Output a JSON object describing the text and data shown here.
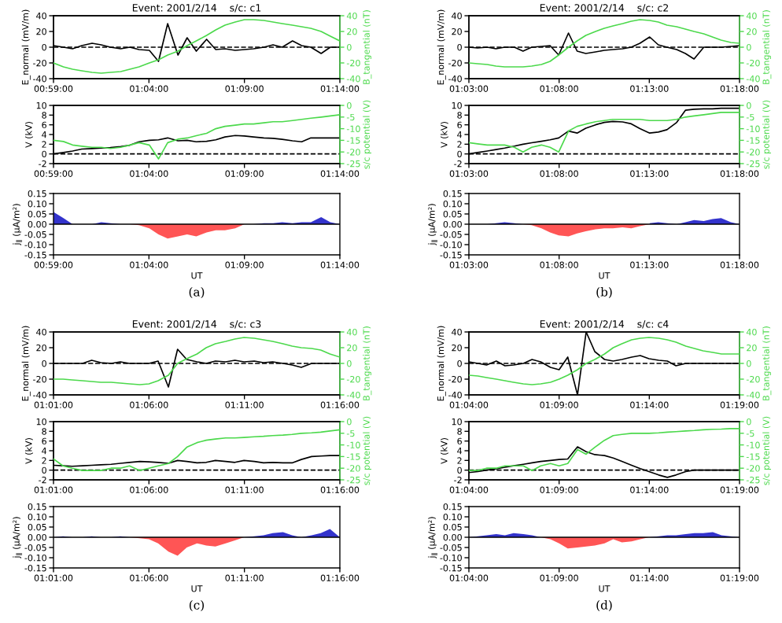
{
  "chart_data": [
    {
      "type": "line",
      "title": "Event: 2001/2/14    s/c: c1",
      "ylabel": "E_normal (mV/m)",
      "y2label": "B_tangential (nT)",
      "x": [
        0.983333,
        0.992,
        1.0,
        1.008,
        1.017,
        1.025,
        1.033,
        1.042,
        1.05,
        1.058,
        1.067,
        1.075,
        1.083,
        1.092,
        1.1,
        1.108,
        1.117,
        1.125,
        1.133,
        1.142,
        1.15,
        1.158,
        1.167,
        1.175,
        1.183,
        1.192,
        1.2,
        1.208,
        1.217,
        1.225,
        1.233333
      ],
      "xlim": [
        0.983333,
        1.233333
      ],
      "xticks": [
        {
          "value": 0.983333,
          "label": "00:59:00"
        },
        {
          "value": 1.066667,
          "label": "01:04:00"
        },
        {
          "value": 1.15,
          "label": "01:09:00"
        },
        {
          "value": 1.233333,
          "label": "01:14:00"
        }
      ],
      "ylim": [
        -40,
        40
      ],
      "yticks": [
        -40,
        -20,
        0,
        20,
        40
      ],
      "y2lim": [
        -40,
        40
      ],
      "y2ticks": [
        -40,
        -20,
        0,
        20,
        40
      ],
      "ref_lines": [
        {
          "axis": "y",
          "value": 0,
          "color": "#000000",
          "line_style": "dashed"
        }
      ],
      "series": [
        {
          "color": "#000000",
          "values": [
            2,
            0,
            -2,
            2,
            5,
            3,
            0,
            -2,
            0,
            -3,
            -4,
            -18,
            30,
            -10,
            12,
            -5,
            10,
            -3,
            -2,
            -4,
            -3,
            -2,
            0,
            3,
            0,
            8,
            2,
            0,
            -8,
            0,
            0
          ]
        },
        {
          "color": "#4cd94c",
          "axis": "y2",
          "values": [
            -20,
            -25,
            -28,
            -30,
            -32,
            -33,
            -32,
            -31,
            -28,
            -25,
            -20,
            -16,
            -10,
            -5,
            2,
            8,
            15,
            22,
            28,
            32,
            35,
            35,
            34,
            32,
            30,
            28,
            26,
            24,
            20,
            14,
            8
          ]
        }
      ]
    },
    {
      "type": "line",
      "ylabel": "V (kV)",
      "y2label": "s/c potential (V)",
      "x": [
        0.983333,
        0.992,
        1.0,
        1.008,
        1.017,
        1.025,
        1.033,
        1.042,
        1.05,
        1.058,
        1.067,
        1.075,
        1.083,
        1.092,
        1.1,
        1.108,
        1.117,
        1.125,
        1.133,
        1.142,
        1.15,
        1.158,
        1.167,
        1.175,
        1.183,
        1.192,
        1.2,
        1.208,
        1.217,
        1.225,
        1.233333
      ],
      "xlim": [
        0.983333,
        1.233333
      ],
      "xticks": [
        {
          "value": 0.983333,
          "label": "00:59:00"
        },
        {
          "value": 1.066667,
          "label": "01:04:00"
        },
        {
          "value": 1.15,
          "label": "01:09:00"
        },
        {
          "value": 1.233333,
          "label": "01:14:00"
        }
      ],
      "ylim": [
        -2,
        10
      ],
      "yticks": [
        -2,
        0,
        2,
        4,
        6,
        8,
        10
      ],
      "y2lim": [
        -25,
        0
      ],
      "y2ticks": [
        -25,
        -20,
        -15,
        -10,
        -5,
        0
      ],
      "ref_lines": [
        {
          "axis": "y",
          "value": 0,
          "color": "#000000",
          "line_style": "dashed"
        }
      ],
      "series": [
        {
          "color": "#000000",
          "values": [
            0,
            0.3,
            0.6,
            1,
            1.1,
            1.2,
            1.3,
            1.5,
            1.8,
            2.5,
            2.8,
            2.9,
            3.3,
            2.7,
            2.8,
            2.5,
            2.6,
            2.9,
            3.5,
            3.8,
            3.7,
            3.5,
            3.3,
            3.2,
            3.0,
            2.7,
            2.5,
            3.3,
            3.3,
            3.3,
            3.3
          ]
        },
        {
          "color": "#4cd94c",
          "axis": "y2",
          "values": [
            -15,
            -15.5,
            -17,
            -17.5,
            -18,
            -18,
            -18.5,
            -18,
            -17,
            -16,
            -17,
            -23,
            -16,
            -14.5,
            -14,
            -13,
            -12,
            -10,
            -9,
            -8.5,
            -8,
            -8,
            -7.5,
            -7,
            -7,
            -6.5,
            -6,
            -5.5,
            -5,
            -4.5,
            -4
          ]
        }
      ]
    },
    {
      "type": "area",
      "xlabel": "UT",
      "ylabel": "j$_{∥}$ (μA/m²)",
      "annotations": [
        "(a)"
      ],
      "x": [
        0.983333,
        0.992,
        1.0,
        1.008,
        1.017,
        1.025,
        1.033,
        1.042,
        1.05,
        1.058,
        1.067,
        1.075,
        1.083,
        1.092,
        1.1,
        1.108,
        1.117,
        1.125,
        1.133,
        1.142,
        1.15,
        1.158,
        1.167,
        1.175,
        1.183,
        1.192,
        1.2,
        1.208,
        1.217,
        1.225,
        1.233333
      ],
      "xlim": [
        0.983333,
        1.233333
      ],
      "xticks": [
        {
          "value": 0.983333,
          "label": "00:59:00"
        },
        {
          "value": 1.066667,
          "label": "01:04:00"
        },
        {
          "value": 1.15,
          "label": "01:09:00"
        },
        {
          "value": 1.233333,
          "label": "01:14:00"
        }
      ],
      "ylim": [
        -0.15,
        0.15
      ],
      "yticks": [
        -0.15,
        {
          "value": -0.1,
          "label": "-0.10"
        },
        -0.05,
        {
          "value": 0,
          "label": "0.00"
        },
        0.05,
        {
          "value": 0.1,
          "label": "0.10"
        },
        0.15
      ],
      "ref_lines": [
        {
          "axis": "y",
          "value": 0,
          "color": "#000000",
          "line_style": "solid"
        }
      ],
      "series": [
        {
          "color": "#3333cc",
          "values": [
            0.06,
            0.03,
            0,
            0,
            0,
            0.01,
            0.005,
            0,
            0,
            null,
            null,
            null,
            null,
            null,
            null,
            null,
            null,
            null,
            null,
            null,
            0,
            0,
            0.005,
            0.005,
            0.01,
            0.005,
            0.01,
            0.01,
            0.035,
            0.01,
            0
          ]
        },
        {
          "color": "#ff5555",
          "values": [
            null,
            null,
            null,
            null,
            null,
            null,
            null,
            0,
            0,
            -0.005,
            -0.02,
            -0.05,
            -0.07,
            -0.06,
            -0.05,
            -0.06,
            -0.04,
            -0.03,
            -0.03,
            -0.02,
            0,
            0,
            null,
            null,
            null,
            null,
            null,
            null,
            null,
            null,
            null
          ]
        }
      ]
    },
    {
      "type": "line",
      "title": "Event: 2001/2/14    s/c: c2",
      "ylabel": "E_normal (mV/m)",
      "y2label": "B_tangential (nT)",
      "x": [
        1.05,
        1.058,
        1.067,
        1.075,
        1.083,
        1.092,
        1.1,
        1.108,
        1.117,
        1.125,
        1.133,
        1.142,
        1.15,
        1.158,
        1.167,
        1.175,
        1.183,
        1.192,
        1.2,
        1.208,
        1.217,
        1.225,
        1.233,
        1.242,
        1.25,
        1.258,
        1.267,
        1.275,
        1.283,
        1.292,
        1.3
      ],
      "xlim": [
        1.05,
        1.3
      ],
      "xticks": [
        {
          "value": 1.05,
          "label": "01:03:00"
        },
        {
          "value": 1.133333,
          "label": "01:08:00"
        },
        {
          "value": 1.216667,
          "label": "01:13:00"
        },
        {
          "value": 1.3,
          "label": "01:18:00"
        }
      ],
      "ylim": [
        -40,
        40
      ],
      "yticks": [
        -40,
        -20,
        0,
        20,
        40
      ],
      "y2lim": [
        -40,
        40
      ],
      "y2ticks": [
        -40,
        -20,
        0,
        20,
        40
      ],
      "ref_lines": [
        {
          "axis": "y",
          "value": 0,
          "color": "#000000",
          "line_style": "dashed"
        }
      ],
      "series": [
        {
          "color": "#000000",
          "values": [
            0,
            -1,
            0,
            -2,
            0,
            0,
            -5,
            0,
            1,
            2,
            -10,
            18,
            -5,
            -8,
            -6,
            -4,
            -3,
            -2,
            0,
            5,
            13,
            3,
            0,
            -3,
            -8,
            -15,
            0,
            0,
            0,
            1,
            2
          ]
        },
        {
          "color": "#4cd94c",
          "axis": "y2",
          "values": [
            -20,
            -21,
            -22,
            -24,
            -25,
            -25,
            -25,
            -24,
            -22,
            -18,
            -10,
            0,
            8,
            15,
            20,
            24,
            27,
            30,
            33,
            35,
            34,
            32,
            28,
            26,
            23,
            20,
            17,
            13,
            9,
            6,
            5
          ]
        }
      ]
    },
    {
      "type": "line",
      "ylabel": "V (kV)",
      "y2label": "s/c potential (V)",
      "x": [
        1.05,
        1.058,
        1.067,
        1.075,
        1.083,
        1.092,
        1.1,
        1.108,
        1.117,
        1.125,
        1.133,
        1.142,
        1.15,
        1.158,
        1.167,
        1.175,
        1.183,
        1.192,
        1.2,
        1.208,
        1.217,
        1.225,
        1.233,
        1.242,
        1.25,
        1.258,
        1.267,
        1.275,
        1.283,
        1.292,
        1.3
      ],
      "xlim": [
        1.05,
        1.3
      ],
      "xticks": [
        {
          "value": 1.05,
          "label": "01:03:00"
        },
        {
          "value": 1.133333,
          "label": "01:08:00"
        },
        {
          "value": 1.216667,
          "label": "01:13:00"
        },
        {
          "value": 1.3,
          "label": "01:18:00"
        }
      ],
      "ylim": [
        -2,
        10
      ],
      "yticks": [
        -2,
        0,
        2,
        4,
        6,
        8,
        10
      ],
      "y2lim": [
        -25,
        0
      ],
      "y2ticks": [
        -25,
        -20,
        -15,
        -10,
        -5,
        0
      ],
      "ref_lines": [
        {
          "axis": "y",
          "value": 0,
          "color": "#000000",
          "line_style": "dashed"
        }
      ],
      "series": [
        {
          "color": "#000000",
          "values": [
            0,
            0.3,
            0.6,
            0.9,
            1.2,
            1.6,
            2.0,
            2.3,
            2.6,
            2.9,
            3.3,
            4.7,
            4.3,
            5.3,
            6.0,
            6.5,
            6.7,
            6.6,
            6.2,
            5.2,
            4.3,
            4.5,
            5.0,
            6.5,
            9.0,
            9.2,
            9.3,
            9.3,
            9.4,
            9.4,
            9.4
          ]
        },
        {
          "color": "#4cd94c",
          "axis": "y2",
          "values": [
            -16,
            -16.5,
            -17,
            -17,
            -17,
            -18,
            -20,
            -18,
            -17,
            -18,
            -20,
            -11,
            -9,
            -8,
            -7,
            -6.5,
            -6,
            -6,
            -6,
            -6,
            -6.5,
            -6.5,
            -6.5,
            -6,
            -5,
            -4.5,
            -4,
            -3.5,
            -3,
            -3,
            -3
          ]
        }
      ]
    },
    {
      "type": "area",
      "xlabel": "UT",
      "ylabel": "j$_{∥}$ (μA/m²)",
      "annotations": [
        "(b)"
      ],
      "x": [
        1.05,
        1.058,
        1.067,
        1.075,
        1.083,
        1.092,
        1.1,
        1.108,
        1.117,
        1.125,
        1.133,
        1.142,
        1.15,
        1.158,
        1.167,
        1.175,
        1.183,
        1.192,
        1.2,
        1.208,
        1.217,
        1.225,
        1.233,
        1.242,
        1.25,
        1.258,
        1.267,
        1.275,
        1.283,
        1.292,
        1.3
      ],
      "xlim": [
        1.05,
        1.3
      ],
      "xticks": [
        {
          "value": 1.05,
          "label": "01:03:00"
        },
        {
          "value": 1.133333,
          "label": "01:08:00"
        },
        {
          "value": 1.216667,
          "label": "01:13:00"
        },
        {
          "value": 1.3,
          "label": "01:18:00"
        }
      ],
      "ylim": [
        -0.15,
        0.15
      ],
      "yticks": [
        -0.15,
        {
          "value": -0.1,
          "label": "-0.10"
        },
        -0.05,
        {
          "value": 0,
          "label": "0.00"
        },
        0.05,
        {
          "value": 0.1,
          "label": "0.10"
        },
        0.15
      ],
      "ref_lines": [
        {
          "axis": "y",
          "value": 0,
          "color": "#000000",
          "line_style": "solid"
        }
      ],
      "series": [
        {
          "color": "#3333cc",
          "values": [
            0,
            0,
            0,
            0.005,
            0.01,
            0.005,
            0,
            null,
            null,
            null,
            null,
            null,
            null,
            null,
            null,
            null,
            null,
            null,
            null,
            null,
            0.005,
            0.01,
            0.005,
            0,
            0.01,
            0.02,
            0.015,
            0.025,
            0.03,
            0.01,
            0
          ]
        },
        {
          "color": "#ff5555",
          "values": [
            null,
            null,
            null,
            null,
            null,
            null,
            0,
            -0.005,
            -0.02,
            -0.04,
            -0.055,
            -0.06,
            -0.045,
            -0.035,
            -0.025,
            -0.02,
            -0.02,
            -0.015,
            -0.02,
            -0.01,
            0,
            null,
            null,
            null,
            null,
            null,
            null,
            null,
            null,
            null,
            null
          ]
        }
      ]
    },
    {
      "type": "line",
      "title": "Event: 2001/2/14    s/c: c3",
      "ylabel": "E_normal (mV/m)",
      "y2label": "B_tangential (nT)",
      "x": [
        1.016667,
        1.025,
        1.033,
        1.042,
        1.05,
        1.058,
        1.067,
        1.075,
        1.083,
        1.092,
        1.1,
        1.108,
        1.117,
        1.125,
        1.133,
        1.142,
        1.15,
        1.158,
        1.167,
        1.175,
        1.183,
        1.192,
        1.2,
        1.208,
        1.217,
        1.225,
        1.233,
        1.242,
        1.25,
        1.258,
        1.266667
      ],
      "xlim": [
        1.016667,
        1.266667
      ],
      "xticks": [
        {
          "value": 1.016667,
          "label": "01:01:00"
        },
        {
          "value": 1.1,
          "label": "01:06:00"
        },
        {
          "value": 1.183333,
          "label": "01:11:00"
        },
        {
          "value": 1.266667,
          "label": "01:16:00"
        }
      ],
      "ylim": [
        -40,
        40
      ],
      "yticks": [
        -40,
        -20,
        0,
        20,
        40
      ],
      "y2lim": [
        -40,
        40
      ],
      "y2ticks": [
        -40,
        -20,
        0,
        20,
        40
      ],
      "ref_lines": [
        {
          "axis": "y",
          "value": 0,
          "color": "#000000",
          "line_style": "dashed"
        }
      ],
      "series": [
        {
          "color": "#000000",
          "values": [
            0,
            0,
            0,
            0,
            4,
            1,
            0,
            2,
            0,
            0,
            0,
            3,
            -30,
            18,
            5,
            2,
            0,
            3,
            2,
            4,
            2,
            3,
            1,
            2,
            0,
            -2,
            -5,
            0,
            0,
            0,
            0
          ]
        },
        {
          "color": "#4cd94c",
          "axis": "y2",
          "values": [
            -20,
            -20,
            -21,
            -22,
            -23,
            -24,
            -24,
            -25,
            -26,
            -27,
            -26,
            -22,
            -15,
            0,
            6,
            12,
            20,
            25,
            28,
            31,
            33,
            32,
            30,
            28,
            25,
            22,
            20,
            19,
            17,
            12,
            8
          ]
        }
      ]
    },
    {
      "type": "line",
      "ylabel": "V (kV)",
      "y2label": "s/c potential (V)",
      "x": [
        1.016667,
        1.025,
        1.033,
        1.042,
        1.05,
        1.058,
        1.067,
        1.075,
        1.083,
        1.092,
        1.1,
        1.108,
        1.117,
        1.125,
        1.133,
        1.142,
        1.15,
        1.158,
        1.167,
        1.175,
        1.183,
        1.192,
        1.2,
        1.208,
        1.217,
        1.225,
        1.233,
        1.242,
        1.25,
        1.258,
        1.266667
      ],
      "xlim": [
        1.016667,
        1.266667
      ],
      "xticks": [
        {
          "value": 1.016667,
          "label": "01:01:00"
        },
        {
          "value": 1.1,
          "label": "01:06:00"
        },
        {
          "value": 1.183333,
          "label": "01:11:00"
        },
        {
          "value": 1.266667,
          "label": "01:16:00"
        }
      ],
      "ylim": [
        -2,
        10
      ],
      "yticks": [
        -2,
        0,
        2,
        4,
        6,
        8,
        10
      ],
      "y2lim": [
        -25,
        0
      ],
      "y2ticks": [
        -25,
        -20,
        -15,
        -10,
        -5,
        0
      ],
      "ref_lines": [
        {
          "axis": "y",
          "value": 0,
          "color": "#000000",
          "line_style": "dashed"
        }
      ],
      "series": [
        {
          "color": "#000000",
          "values": [
            1,
            0.9,
            0.8,
            0.9,
            1.0,
            1.1,
            1.2,
            1.4,
            1.6,
            1.8,
            1.7,
            1.6,
            1.4,
            2.0,
            1.8,
            1.5,
            1.6,
            2.0,
            1.8,
            1.6,
            2.0,
            1.8,
            1.5,
            1.6,
            1.5,
            1.5,
            2.2,
            2.8,
            2.9,
            3.0,
            3.0
          ]
        },
        {
          "color": "#4cd94c",
          "axis": "y2",
          "values": [
            -16,
            -19,
            -20,
            -21,
            -21,
            -21,
            -20,
            -20,
            -19,
            -21,
            -20,
            -19,
            -18,
            -15,
            -11,
            -9,
            -8,
            -7.5,
            -7,
            -7,
            -6.8,
            -6.5,
            -6.3,
            -6,
            -5.8,
            -5.5,
            -5,
            -4.8,
            -4.5,
            -4,
            -3.5
          ]
        }
      ]
    },
    {
      "type": "area",
      "xlabel": "UT",
      "ylabel": "j$_{∥}$ (μA/m²)",
      "annotations": [
        "(c)"
      ],
      "x": [
        1.016667,
        1.025,
        1.033,
        1.042,
        1.05,
        1.058,
        1.067,
        1.075,
        1.083,
        1.092,
        1.1,
        1.108,
        1.117,
        1.125,
        1.133,
        1.142,
        1.15,
        1.158,
        1.167,
        1.175,
        1.183,
        1.192,
        1.2,
        1.208,
        1.217,
        1.225,
        1.233,
        1.242,
        1.25,
        1.258,
        1.266667
      ],
      "xlim": [
        1.016667,
        1.266667
      ],
      "xticks": [
        {
          "value": 1.016667,
          "label": "01:01:00"
        },
        {
          "value": 1.1,
          "label": "01:06:00"
        },
        {
          "value": 1.183333,
          "label": "01:11:00"
        },
        {
          "value": 1.266667,
          "label": "01:16:00"
        }
      ],
      "ylim": [
        -0.15,
        0.15
      ],
      "yticks": [
        -0.15,
        {
          "value": -0.1,
          "label": "-0.10"
        },
        -0.05,
        {
          "value": 0,
          "label": "0.00"
        },
        0.05,
        {
          "value": 0.1,
          "label": "0.10"
        },
        0.15
      ],
      "ref_lines": [
        {
          "axis": "y",
          "value": 0,
          "color": "#000000",
          "line_style": "solid"
        }
      ],
      "series": [
        {
          "color": "#3333cc",
          "values": [
            0,
            0.005,
            0,
            0,
            0.005,
            0,
            0,
            0.005,
            0,
            null,
            null,
            null,
            null,
            null,
            null,
            null,
            null,
            null,
            null,
            null,
            0,
            0.005,
            0.01,
            0.02,
            0.025,
            0.01,
            0,
            0.01,
            0.02,
            0.04,
            0
          ]
        },
        {
          "color": "#ff5555",
          "values": [
            null,
            null,
            null,
            null,
            null,
            null,
            null,
            null,
            0,
            -0.005,
            -0.01,
            -0.03,
            -0.07,
            -0.09,
            -0.05,
            -0.03,
            -0.04,
            -0.045,
            -0.03,
            -0.015,
            0,
            null,
            null,
            null,
            null,
            null,
            null,
            null,
            null,
            null,
            null
          ]
        }
      ]
    },
    {
      "type": "line",
      "title": "Event: 2001/2/14    s/c: c4",
      "ylabel": "E_normal (mV/m)",
      "y2label": "B_tangential (nT)",
      "x": [
        1.066667,
        1.075,
        1.083,
        1.092,
        1.1,
        1.108,
        1.117,
        1.125,
        1.133,
        1.142,
        1.15,
        1.158,
        1.167,
        1.175,
        1.183,
        1.192,
        1.2,
        1.208,
        1.217,
        1.225,
        1.233,
        1.242,
        1.25,
        1.258,
        1.267,
        1.275,
        1.283,
        1.292,
        1.3,
        1.308,
        1.316667
      ],
      "xlim": [
        1.066667,
        1.316667
      ],
      "xticks": [
        {
          "value": 1.066667,
          "label": "01:04:00"
        },
        {
          "value": 1.15,
          "label": "01:09:00"
        },
        {
          "value": 1.233333,
          "label": "01:14:00"
        },
        {
          "value": 1.316667,
          "label": "01:19:00"
        }
      ],
      "ylim": [
        -40,
        40
      ],
      "yticks": [
        -40,
        -20,
        0,
        20,
        40
      ],
      "y2lim": [
        -40,
        40
      ],
      "y2ticks": [
        -40,
        -20,
        0,
        20,
        40
      ],
      "ref_lines": [
        {
          "axis": "y",
          "value": 0,
          "color": "#000000",
          "line_style": "dashed"
        }
      ],
      "series": [
        {
          "color": "#000000",
          "values": [
            2,
            0,
            -2,
            3,
            -3,
            -2,
            0,
            5,
            2,
            -5,
            -8,
            8,
            -40,
            40,
            15,
            5,
            3,
            5,
            8,
            10,
            6,
            4,
            3,
            -3,
            0,
            0,
            0,
            0,
            0,
            0,
            0
          ]
        },
        {
          "color": "#4cd94c",
          "axis": "y2",
          "values": [
            -15,
            -16,
            -18,
            -20,
            -22,
            -24,
            -26,
            -27,
            -26,
            -24,
            -20,
            -15,
            -8,
            0,
            5,
            12,
            20,
            25,
            30,
            32,
            33,
            32,
            30,
            27,
            22,
            19,
            16,
            14,
            12,
            12,
            12
          ]
        }
      ]
    },
    {
      "type": "line",
      "ylabel": "V (kV)",
      "y2label": "s/c potential (V)",
      "x": [
        1.066667,
        1.075,
        1.083,
        1.092,
        1.1,
        1.108,
        1.117,
        1.125,
        1.133,
        1.142,
        1.15,
        1.158,
        1.167,
        1.175,
        1.183,
        1.192,
        1.2,
        1.208,
        1.217,
        1.225,
        1.233,
        1.242,
        1.25,
        1.258,
        1.267,
        1.275,
        1.283,
        1.292,
        1.3,
        1.308,
        1.316667
      ],
      "xlim": [
        1.066667,
        1.316667
      ],
      "xticks": [
        {
          "value": 1.066667,
          "label": "01:04:00"
        },
        {
          "value": 1.15,
          "label": "01:09:00"
        },
        {
          "value": 1.233333,
          "label": "01:14:00"
        },
        {
          "value": 1.316667,
          "label": "01:19:00"
        }
      ],
      "ylim": [
        -2,
        10
      ],
      "yticks": [
        -2,
        0,
        2,
        4,
        6,
        8,
        10
      ],
      "y2lim": [
        -25,
        0
      ],
      "y2ticks": [
        -25,
        -20,
        -15,
        -10,
        -5,
        0
      ],
      "ref_lines": [
        {
          "axis": "y",
          "value": 0,
          "color": "#000000",
          "line_style": "dashed"
        }
      ],
      "series": [
        {
          "color": "#000000",
          "values": [
            -0.5,
            -0.3,
            0,
            0.3,
            0.6,
            0.9,
            1.2,
            1.5,
            1.8,
            2.0,
            2.2,
            2.3,
            4.8,
            3.8,
            3.2,
            3.0,
            2.5,
            1.8,
            1.0,
            0.3,
            -0.3,
            -1.0,
            -1.5,
            -1.0,
            -0.3,
            0,
            0,
            0,
            0,
            0,
            0
          ]
        },
        {
          "color": "#4cd94c",
          "axis": "y2",
          "values": [
            -21,
            -21,
            -20,
            -20,
            -19,
            -19,
            -19,
            -21,
            -19,
            -18,
            -19,
            -18,
            -12,
            -14,
            -11,
            -8,
            -6,
            -5.5,
            -5,
            -5,
            -5,
            -4.8,
            -4.5,
            -4.3,
            -4,
            -3.8,
            -3.5,
            -3.3,
            -3.2,
            -3,
            -3
          ]
        }
      ]
    },
    {
      "type": "area",
      "xlabel": "UT",
      "ylabel": "j$_{∥}$ (μA/m²)",
      "annotations": [
        "(d)"
      ],
      "x": [
        1.066667,
        1.075,
        1.083,
        1.092,
        1.1,
        1.108,
        1.117,
        1.125,
        1.133,
        1.142,
        1.15,
        1.158,
        1.167,
        1.175,
        1.183,
        1.192,
        1.2,
        1.208,
        1.217,
        1.225,
        1.233,
        1.242,
        1.25,
        1.258,
        1.267,
        1.275,
        1.283,
        1.292,
        1.3,
        1.308,
        1.316667
      ],
      "xlim": [
        1.066667,
        1.316667
      ],
      "xticks": [
        {
          "value": 1.066667,
          "label": "01:04:00"
        },
        {
          "value": 1.15,
          "label": "01:09:00"
        },
        {
          "value": 1.233333,
          "label": "01:14:00"
        },
        {
          "value": 1.316667,
          "label": "01:19:00"
        }
      ],
      "ylim": [
        -0.15,
        0.15
      ],
      "yticks": [
        -0.15,
        {
          "value": -0.1,
          "label": "-0.10"
        },
        -0.05,
        {
          "value": 0,
          "label": "0.00"
        },
        0.05,
        {
          "value": 0.1,
          "label": "0.10"
        },
        0.15
      ],
      "ref_lines": [
        {
          "axis": "y",
          "value": 0,
          "color": "#000000",
          "line_style": "solid"
        }
      ],
      "series": [
        {
          "color": "#3333cc",
          "values": [
            0,
            0.005,
            0.01,
            0.015,
            0.01,
            0.02,
            0.015,
            0.01,
            0,
            null,
            null,
            null,
            null,
            null,
            null,
            null,
            null,
            null,
            null,
            null,
            0,
            0.005,
            0.01,
            0.01,
            0.015,
            0.02,
            0.02,
            0.025,
            0.01,
            0.005,
            0
          ]
        },
        {
          "color": "#ff5555",
          "values": [
            null,
            null,
            null,
            null,
            null,
            null,
            null,
            null,
            0,
            -0.01,
            -0.03,
            -0.055,
            -0.05,
            -0.045,
            -0.04,
            -0.03,
            -0.01,
            -0.025,
            -0.02,
            -0.01,
            0,
            null,
            null,
            null,
            null,
            null,
            null,
            null,
            null,
            null,
            null
          ]
        }
      ]
    }
  ]
}
